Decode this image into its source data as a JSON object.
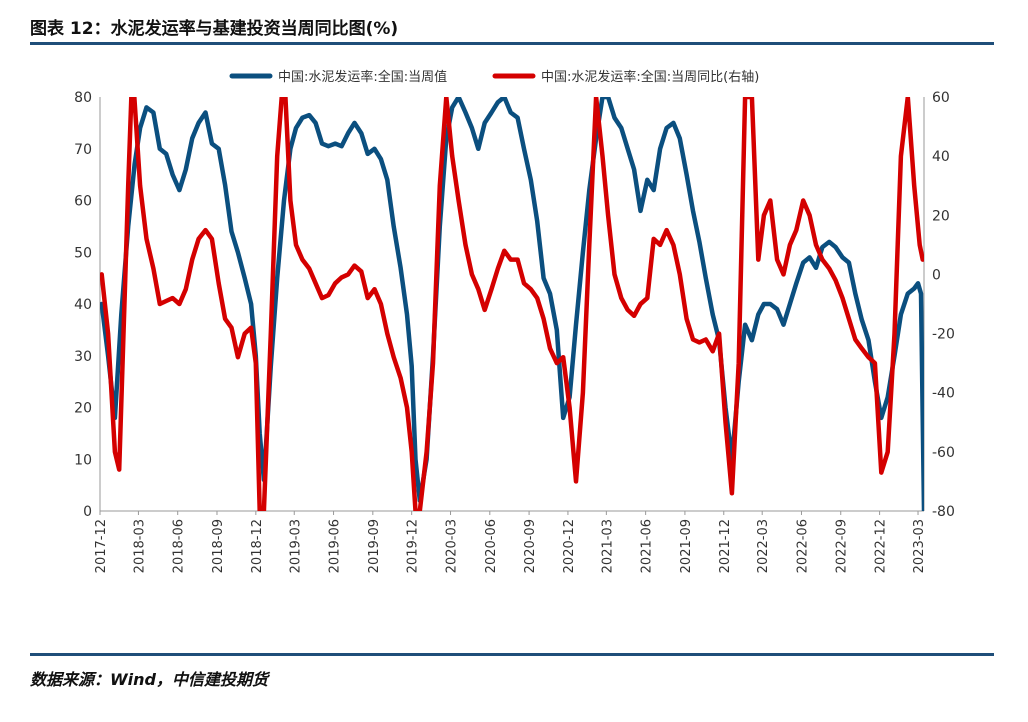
{
  "header": {
    "title": "图表 12：水泥发运率与基建投资当周同比图(%)"
  },
  "footer": {
    "source": "数据来源：Wind，中信建投期货"
  },
  "colors": {
    "accent": "#1f4e79",
    "series_blue": "#0b4f7f",
    "series_red": "#d40000"
  },
  "chart_data": {
    "type": "line",
    "legend_placement": "top",
    "grid": false,
    "x_tick_labels": [
      "2017-12",
      "2018-03",
      "2018-06",
      "2018-09",
      "2018-12",
      "2019-03",
      "2019-06",
      "2019-09",
      "2019-12",
      "2020-03",
      "2020-06",
      "2020-09",
      "2020-12",
      "2021-03",
      "2021-06",
      "2021-09",
      "2021-12",
      "2022-03",
      "2022-06",
      "2022-09",
      "2022-12",
      "2023-03"
    ],
    "y_left": {
      "min": 0,
      "max": 80,
      "ticks": [
        0,
        10,
        20,
        30,
        40,
        50,
        60,
        70,
        80
      ]
    },
    "y_right": {
      "min": -80,
      "max": 60,
      "ticks": [
        -80,
        -60,
        -40,
        -20,
        0,
        20,
        40,
        60
      ]
    },
    "series": [
      {
        "name": "中国:水泥发运率:全国:当周值",
        "axis": "left",
        "color": "#0b4f7f",
        "points": [
          [
            "2017-12-05",
            40
          ],
          [
            "2017-12-20",
            30
          ],
          [
            "2018-01-05",
            18
          ],
          [
            "2018-01-20",
            38
          ],
          [
            "2018-02-05",
            55
          ],
          [
            "2018-02-20",
            67
          ],
          [
            "2018-03-05",
            74
          ],
          [
            "2018-03-20",
            78
          ],
          [
            "2018-04-05",
            77
          ],
          [
            "2018-04-20",
            70
          ],
          [
            "2018-05-05",
            69
          ],
          [
            "2018-05-20",
            65
          ],
          [
            "2018-06-05",
            62
          ],
          [
            "2018-06-20",
            66
          ],
          [
            "2018-07-05",
            72
          ],
          [
            "2018-07-20",
            75
          ],
          [
            "2018-08-05",
            77
          ],
          [
            "2018-08-20",
            71
          ],
          [
            "2018-09-05",
            70
          ],
          [
            "2018-09-20",
            63
          ],
          [
            "2018-10-05",
            54
          ],
          [
            "2018-10-20",
            50
          ],
          [
            "2018-11-05",
            45
          ],
          [
            "2018-11-20",
            40
          ],
          [
            "2018-12-01",
            30
          ],
          [
            "2018-12-10",
            15
          ],
          [
            "2018-12-20",
            6
          ],
          [
            "2019-01-05",
            28
          ],
          [
            "2019-01-20",
            45
          ],
          [
            "2019-02-05",
            60
          ],
          [
            "2019-02-20",
            70
          ],
          [
            "2019-03-05",
            74
          ],
          [
            "2019-03-20",
            76
          ],
          [
            "2019-04-05",
            76.5
          ],
          [
            "2019-04-20",
            75
          ],
          [
            "2019-05-05",
            71
          ],
          [
            "2019-05-20",
            70.5
          ],
          [
            "2019-06-05",
            71
          ],
          [
            "2019-06-20",
            70.5
          ],
          [
            "2019-07-05",
            73
          ],
          [
            "2019-07-20",
            75
          ],
          [
            "2019-08-05",
            73
          ],
          [
            "2019-08-20",
            69
          ],
          [
            "2019-09-05",
            70
          ],
          [
            "2019-09-20",
            68
          ],
          [
            "2019-10-05",
            64
          ],
          [
            "2019-10-20",
            55
          ],
          [
            "2019-11-05",
            47
          ],
          [
            "2019-11-20",
            38
          ],
          [
            "2019-12-01",
            28
          ],
          [
            "2019-12-10",
            10
          ],
          [
            "2019-12-20",
            2
          ],
          [
            "2020-01-05",
            10
          ],
          [
            "2020-01-20",
            30
          ],
          [
            "2020-02-05",
            55
          ],
          [
            "2020-02-20",
            72
          ],
          [
            "2020-03-05",
            78
          ],
          [
            "2020-03-20",
            80
          ],
          [
            "2020-04-05",
            77
          ],
          [
            "2020-04-20",
            74
          ],
          [
            "2020-05-05",
            70
          ],
          [
            "2020-05-20",
            75
          ],
          [
            "2020-06-05",
            77
          ],
          [
            "2020-06-20",
            79
          ],
          [
            "2020-07-05",
            80
          ],
          [
            "2020-07-20",
            77
          ],
          [
            "2020-08-05",
            76
          ],
          [
            "2020-08-20",
            70
          ],
          [
            "2020-09-05",
            64
          ],
          [
            "2020-09-20",
            56
          ],
          [
            "2020-10-05",
            45
          ],
          [
            "2020-10-20",
            42
          ],
          [
            "2020-11-05",
            35
          ],
          [
            "2020-11-20",
            18
          ],
          [
            "2020-12-05",
            22
          ],
          [
            "2020-12-20",
            36
          ],
          [
            "2021-01-05",
            50
          ],
          [
            "2021-01-20",
            62
          ],
          [
            "2021-02-05",
            72
          ],
          [
            "2021-02-20",
            80
          ],
          [
            "2021-03-05",
            80
          ],
          [
            "2021-03-20",
            76
          ],
          [
            "2021-04-05",
            74
          ],
          [
            "2021-04-20",
            70
          ],
          [
            "2021-05-05",
            66
          ],
          [
            "2021-05-20",
            58
          ],
          [
            "2021-06-05",
            64
          ],
          [
            "2021-06-20",
            62
          ],
          [
            "2021-07-05",
            70
          ],
          [
            "2021-07-20",
            74
          ],
          [
            "2021-08-05",
            75
          ],
          [
            "2021-08-20",
            72
          ],
          [
            "2021-09-05",
            65
          ],
          [
            "2021-09-20",
            58
          ],
          [
            "2021-10-05",
            52
          ],
          [
            "2021-10-20",
            45
          ],
          [
            "2021-11-05",
            38
          ],
          [
            "2021-11-20",
            33
          ],
          [
            "2021-12-05",
            20
          ],
          [
            "2021-12-20",
            10
          ],
          [
            "2022-01-05",
            25
          ],
          [
            "2022-01-20",
            36
          ],
          [
            "2022-02-05",
            33
          ],
          [
            "2022-02-20",
            38
          ],
          [
            "2022-03-05",
            40
          ],
          [
            "2022-03-20",
            40
          ],
          [
            "2022-04-05",
            39
          ],
          [
            "2022-04-20",
            36
          ],
          [
            "2022-05-05",
            40
          ],
          [
            "2022-05-20",
            44
          ],
          [
            "2022-06-05",
            48
          ],
          [
            "2022-06-20",
            49
          ],
          [
            "2022-07-05",
            47
          ],
          [
            "2022-07-20",
            51
          ],
          [
            "2022-08-05",
            52
          ],
          [
            "2022-08-20",
            51
          ],
          [
            "2022-09-05",
            49
          ],
          [
            "2022-09-20",
            48
          ],
          [
            "2022-10-05",
            42
          ],
          [
            "2022-10-20",
            37
          ],
          [
            "2022-11-05",
            33
          ],
          [
            "2022-11-20",
            25
          ],
          [
            "2022-12-05",
            18
          ],
          [
            "2022-12-20",
            22
          ],
          [
            "2023-01-05",
            30
          ],
          [
            "2023-01-20",
            38
          ],
          [
            "2023-02-05",
            42
          ],
          [
            "2023-02-20",
            43
          ],
          [
            "2023-03-01",
            44
          ],
          [
            "2023-03-08",
            42
          ],
          [
            "2023-03-15",
            0
          ]
        ]
      },
      {
        "name": "中国:水泥发运率:全国:当周同比(右轴)",
        "axis": "right",
        "color": "#d40000",
        "points": [
          [
            "2017-12-05",
            0
          ],
          [
            "2017-12-20",
            -20
          ],
          [
            "2018-01-05",
            -60
          ],
          [
            "2018-01-15",
            -66
          ],
          [
            "2018-01-25",
            -20
          ],
          [
            "2018-02-05",
            30
          ],
          [
            "2018-02-15",
            70
          ],
          [
            "2018-03-05",
            30
          ],
          [
            "2018-03-20",
            12
          ],
          [
            "2018-04-05",
            2
          ],
          [
            "2018-04-20",
            -10
          ],
          [
            "2018-05-05",
            -9
          ],
          [
            "2018-05-20",
            -8
          ],
          [
            "2018-06-05",
            -10
          ],
          [
            "2018-06-20",
            -5
          ],
          [
            "2018-07-05",
            5
          ],
          [
            "2018-07-20",
            12
          ],
          [
            "2018-08-05",
            15
          ],
          [
            "2018-08-20",
            12
          ],
          [
            "2018-09-05",
            -3
          ],
          [
            "2018-09-20",
            -15
          ],
          [
            "2018-10-05",
            -18
          ],
          [
            "2018-10-20",
            -28
          ],
          [
            "2018-11-05",
            -20
          ],
          [
            "2018-11-20",
            -18
          ],
          [
            "2018-12-01",
            -30
          ],
          [
            "2018-12-10",
            -80
          ],
          [
            "2018-12-20",
            -80
          ],
          [
            "2019-01-05",
            -20
          ],
          [
            "2019-01-20",
            40
          ],
          [
            "2019-02-05",
            70
          ],
          [
            "2019-02-20",
            25
          ],
          [
            "2019-03-05",
            10
          ],
          [
            "2019-03-20",
            5
          ],
          [
            "2019-04-05",
            2
          ],
          [
            "2019-04-20",
            -3
          ],
          [
            "2019-05-05",
            -8
          ],
          [
            "2019-05-20",
            -7
          ],
          [
            "2019-06-05",
            -3
          ],
          [
            "2019-06-20",
            -1
          ],
          [
            "2019-07-05",
            0
          ],
          [
            "2019-07-20",
            3
          ],
          [
            "2019-08-05",
            1
          ],
          [
            "2019-08-20",
            -8
          ],
          [
            "2019-09-05",
            -5
          ],
          [
            "2019-09-20",
            -10
          ],
          [
            "2019-10-05",
            -20
          ],
          [
            "2019-10-20",
            -28
          ],
          [
            "2019-11-05",
            -35
          ],
          [
            "2019-11-20",
            -45
          ],
          [
            "2019-12-01",
            -60
          ],
          [
            "2019-12-10",
            -80
          ],
          [
            "2019-12-20",
            -80
          ],
          [
            "2020-01-05",
            -60
          ],
          [
            "2020-01-20",
            -30
          ],
          [
            "2020-02-05",
            30
          ],
          [
            "2020-02-20",
            60
          ],
          [
            "2020-03-05",
            40
          ],
          [
            "2020-03-20",
            25
          ],
          [
            "2020-04-05",
            10
          ],
          [
            "2020-04-20",
            0
          ],
          [
            "2020-05-05",
            -5
          ],
          [
            "2020-05-20",
            -12
          ],
          [
            "2020-06-05",
            -5
          ],
          [
            "2020-06-20",
            2
          ],
          [
            "2020-07-05",
            8
          ],
          [
            "2020-07-20",
            5
          ],
          [
            "2020-08-05",
            5
          ],
          [
            "2020-08-20",
            -3
          ],
          [
            "2020-09-05",
            -5
          ],
          [
            "2020-09-20",
            -8
          ],
          [
            "2020-10-05",
            -15
          ],
          [
            "2020-10-20",
            -25
          ],
          [
            "2020-11-05",
            -30
          ],
          [
            "2020-11-20",
            -28
          ],
          [
            "2020-12-05",
            -45
          ],
          [
            "2020-12-20",
            -70
          ],
          [
            "2021-01-05",
            -40
          ],
          [
            "2021-01-20",
            10
          ],
          [
            "2021-02-05",
            60
          ],
          [
            "2021-02-20",
            40
          ],
          [
            "2021-03-05",
            20
          ],
          [
            "2021-03-20",
            0
          ],
          [
            "2021-04-05",
            -8
          ],
          [
            "2021-04-20",
            -12
          ],
          [
            "2021-05-05",
            -14
          ],
          [
            "2021-05-20",
            -10
          ],
          [
            "2021-06-05",
            -8
          ],
          [
            "2021-06-20",
            12
          ],
          [
            "2021-07-05",
            10
          ],
          [
            "2021-07-20",
            15
          ],
          [
            "2021-08-05",
            10
          ],
          [
            "2021-08-20",
            0
          ],
          [
            "2021-09-05",
            -15
          ],
          [
            "2021-09-20",
            -22
          ],
          [
            "2021-10-05",
            -23
          ],
          [
            "2021-10-20",
            -22
          ],
          [
            "2021-11-05",
            -26
          ],
          [
            "2021-11-20",
            -20
          ],
          [
            "2021-12-05",
            -50
          ],
          [
            "2021-12-20",
            -74
          ],
          [
            "2022-01-05",
            -30
          ],
          [
            "2022-01-20",
            60
          ],
          [
            "2022-02-05",
            60
          ],
          [
            "2022-02-20",
            5
          ],
          [
            "2022-03-05",
            20
          ],
          [
            "2022-03-20",
            25
          ],
          [
            "2022-04-05",
            5
          ],
          [
            "2022-04-20",
            0
          ],
          [
            "2022-05-05",
            10
          ],
          [
            "2022-05-20",
            15
          ],
          [
            "2022-06-05",
            25
          ],
          [
            "2022-06-20",
            20
          ],
          [
            "2022-07-05",
            10
          ],
          [
            "2022-07-20",
            5
          ],
          [
            "2022-08-05",
            2
          ],
          [
            "2022-08-20",
            -2
          ],
          [
            "2022-09-05",
            -8
          ],
          [
            "2022-09-20",
            -15
          ],
          [
            "2022-10-05",
            -22
          ],
          [
            "2022-10-20",
            -25
          ],
          [
            "2022-11-05",
            -28
          ],
          [
            "2022-11-20",
            -30
          ],
          [
            "2022-12-05",
            -67
          ],
          [
            "2022-12-20",
            -60
          ],
          [
            "2023-01-05",
            -20
          ],
          [
            "2023-01-20",
            40
          ],
          [
            "2023-02-05",
            60
          ],
          [
            "2023-02-20",
            30
          ],
          [
            "2023-03-05",
            10
          ],
          [
            "2023-03-12",
            5
          ]
        ]
      }
    ]
  }
}
